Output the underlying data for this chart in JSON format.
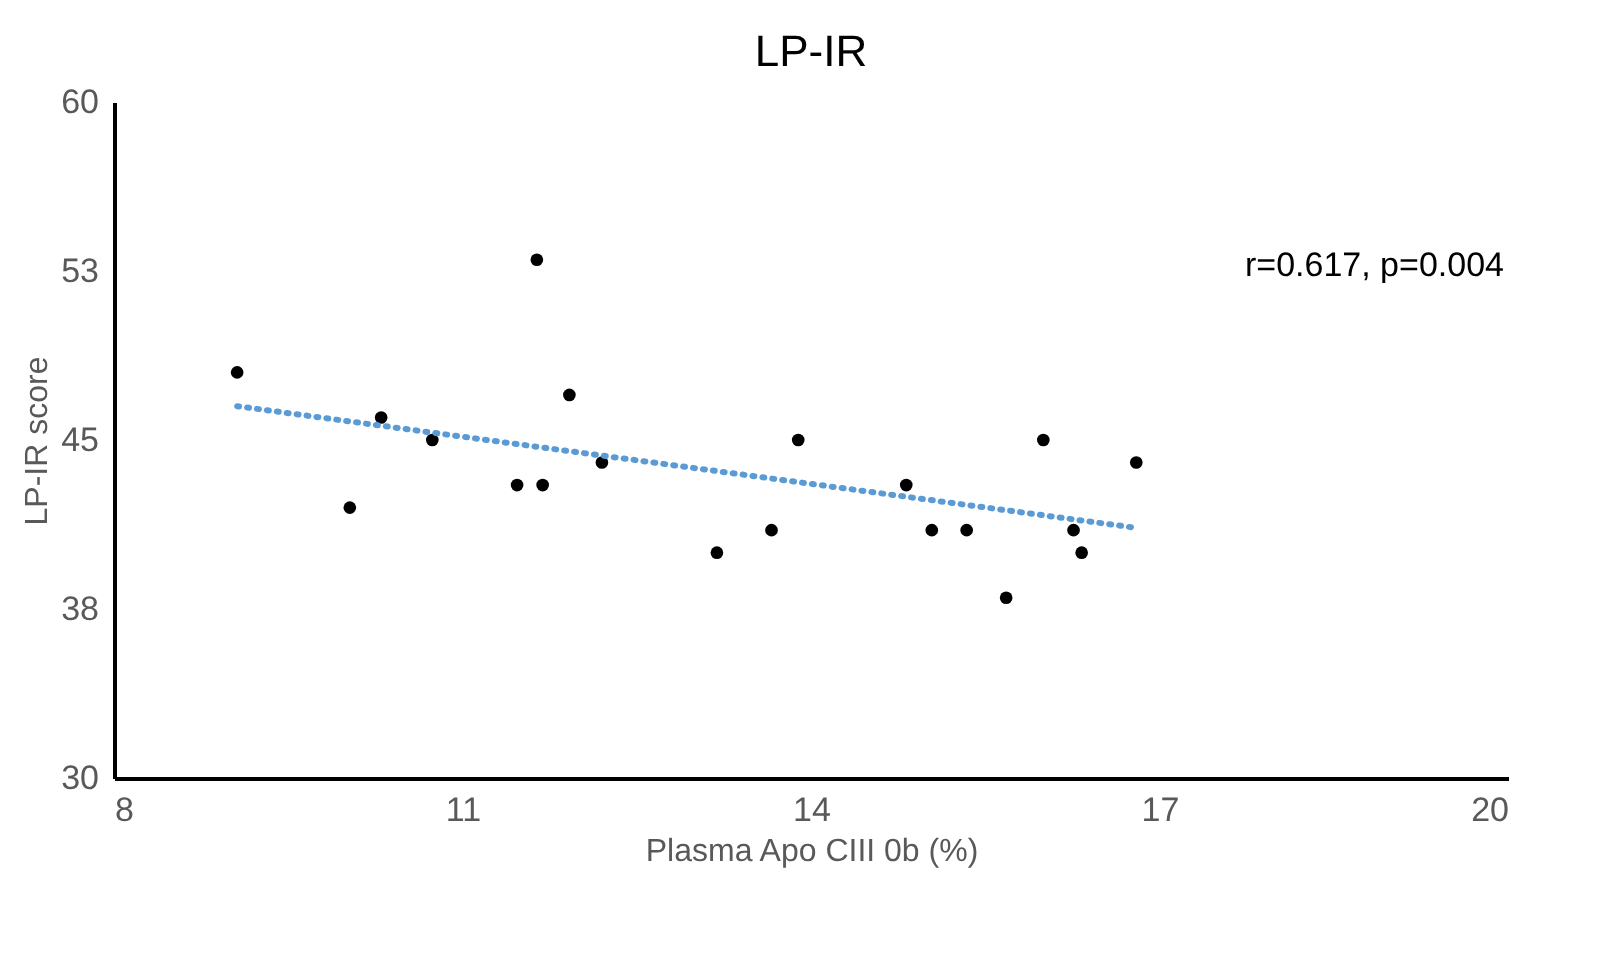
{
  "chart_data": {
    "type": "scatter",
    "title": "LP-IR",
    "xlabel": "Plasma Apo CIII 0b (%)",
    "ylabel": "LP-IR score",
    "xlim": [
      8,
      20
    ],
    "xticks": [
      8,
      11,
      14,
      17,
      20
    ],
    "ylim": [
      30,
      60
    ],
    "yticks": [
      30,
      {
        "value": 37.5,
        "label": "38"
      },
      45,
      {
        "value": 52.5,
        "label": "53"
      },
      60
    ],
    "marker": "circle",
    "annotations": [
      "r=0.617, p=0.004"
    ],
    "series": [
      {
        "color": "#000000",
        "x": [
          9.06,
          10.03,
          10.3,
          10.74,
          11.47,
          11.64,
          11.69,
          11.92,
          12.2,
          13.19,
          13.66,
          13.89,
          14.82,
          15.04,
          15.34,
          15.68,
          16.0,
          16.26,
          16.33,
          16.8
        ],
        "values": [
          48,
          42,
          46,
          45,
          43,
          53,
          43,
          47,
          44,
          40,
          41,
          45,
          43,
          41,
          41,
          38,
          45,
          41,
          40,
          44
        ]
      },
      {
        "type": "line",
        "color": "#5b9bd5",
        "line_style": "dotted",
        "marker": "none",
        "x": [
          9.06,
          16.8
        ],
        "values": [
          46.5,
          41.1
        ]
      }
    ]
  }
}
